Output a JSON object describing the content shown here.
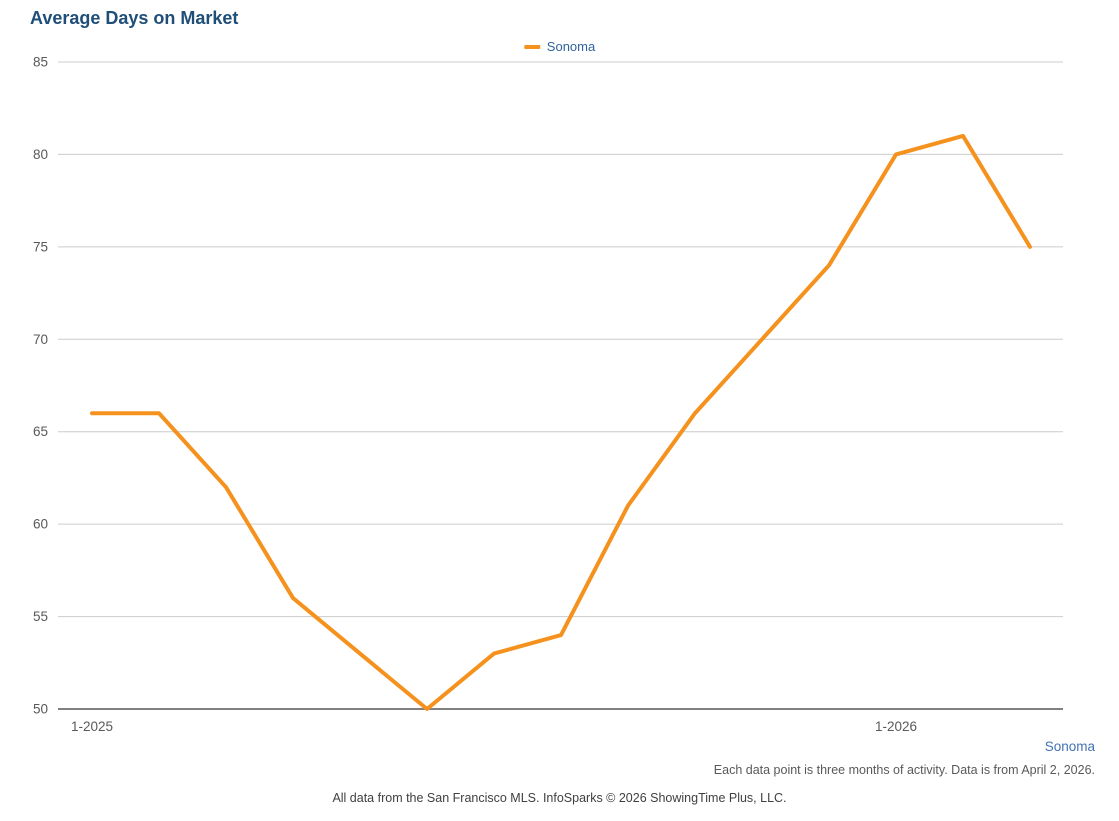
{
  "title": "Average Days on Market",
  "legend": {
    "label": "Sonoma"
  },
  "footer": {
    "series_label": "Sonoma",
    "note_right": "Each data point is three months of activity. Data is from April 2, 2026.",
    "note_center": "All data from the San Francisco MLS. InfoSparks © 2026 ShowingTime Plus, LLC."
  },
  "colors": {
    "line": "#F5921E",
    "title": "#1F4E79",
    "grid": "#CCCCCC",
    "axis": "#808080",
    "tick_text": "#595959",
    "legend_text": "#31639C",
    "footer_series": "#4272B4",
    "note_text": "#595959"
  },
  "chart_data": {
    "type": "line",
    "title": "Average Days on Market",
    "x": [
      "1-2025",
      "2-2025",
      "3-2025",
      "4-2025",
      "5-2025",
      "6-2025",
      "7-2025",
      "8-2025",
      "9-2025",
      "10-2025",
      "11-2025",
      "12-2025",
      "1-2026",
      "2-2026",
      "3-2026"
    ],
    "series": [
      {
        "name": "Sonoma",
        "values": [
          66,
          66,
          62,
          56,
          53,
          50,
          53,
          54,
          61,
          66,
          70,
          74,
          80,
          81,
          75
        ]
      }
    ],
    "ylabel": "",
    "xlabel": "",
    "ylim": [
      50,
      85
    ],
    "ytick_step": 5,
    "xtick_labels_shown": [
      "1-2025",
      "1-2026"
    ],
    "grid": true,
    "legend_position": "top-center",
    "line_color": "#F5921E"
  }
}
